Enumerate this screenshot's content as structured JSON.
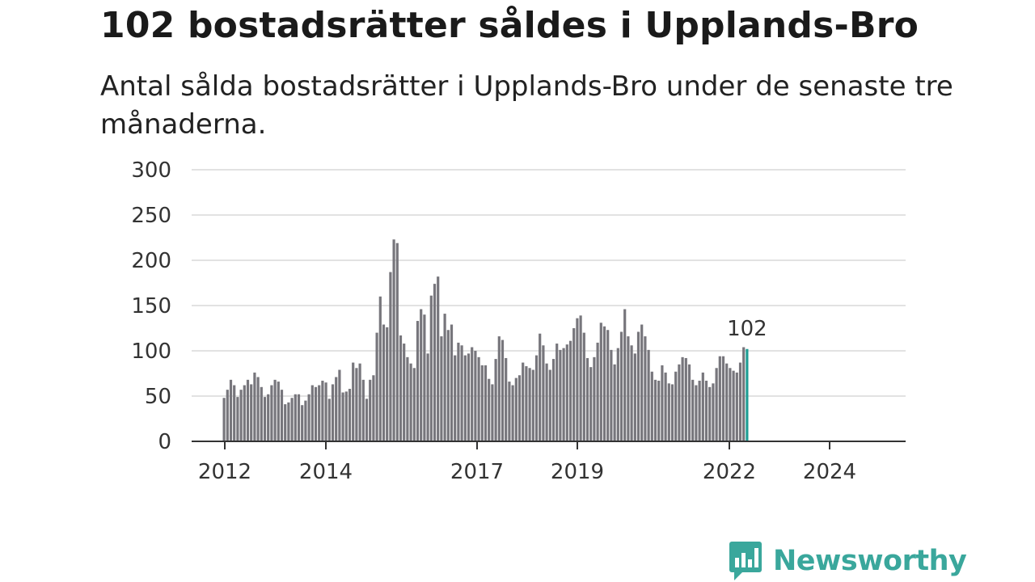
{
  "title": "102 bostadsrätter såldes i Upplands-Bro",
  "subtitle": "Antal sålda bostadsrätter i Upplands-Bro under de senaste tre månaderna.",
  "brand": {
    "name": "Newsworthy",
    "color": "#3aa79c"
  },
  "colors": {
    "bar": "#77767c",
    "highlight": "#1f9e94",
    "grid": "#d9d9d9",
    "axis": "#333333"
  },
  "chart_data": {
    "type": "bar",
    "title": "102 bostadsrätter såldes i Upplands-Bro",
    "subtitle": "Antal sålda bostadsrätter i Upplands-Bro under de senaste tre månaderna.",
    "xlabel": "",
    "ylabel": "",
    "ylim": [
      0,
      300
    ],
    "yticks": [
      0,
      50,
      100,
      150,
      200,
      250,
      300
    ],
    "xticks": [
      "2012",
      "2014",
      "2017",
      "2019",
      "2022",
      "2024"
    ],
    "grid": true,
    "annotation": {
      "text": "102",
      "value": 102
    },
    "highlight_last": true,
    "values": [
      48,
      57,
      68,
      62,
      49,
      57,
      62,
      68,
      63,
      76,
      71,
      60,
      49,
      52,
      62,
      68,
      66,
      57,
      41,
      43,
      48,
      52,
      52,
      40,
      45,
      52,
      62,
      60,
      62,
      67,
      65,
      47,
      63,
      71,
      79,
      54,
      55,
      58,
      87,
      81,
      86,
      68,
      47,
      68,
      73,
      120,
      160,
      129,
      126,
      187,
      223,
      219,
      117,
      108,
      93,
      86,
      81,
      133,
      146,
      140,
      97,
      161,
      174,
      182,
      116,
      141,
      123,
      129,
      95,
      109,
      106,
      95,
      97,
      104,
      100,
      93,
      84,
      84,
      69,
      63,
      91,
      116,
      112,
      92,
      66,
      62,
      70,
      73,
      87,
      83,
      81,
      79,
      95,
      119,
      106,
      86,
      79,
      91,
      108,
      101,
      103,
      107,
      111,
      125,
      136,
      139,
      120,
      92,
      82,
      93,
      109,
      131,
      127,
      123,
      101,
      85,
      103,
      121,
      146,
      116,
      106,
      97,
      121,
      129,
      116,
      101,
      77,
      68,
      67,
      84,
      76,
      64,
      63,
      77,
      85,
      93,
      92,
      85,
      68,
      62,
      67,
      76,
      67,
      60,
      64,
      81,
      94,
      94,
      86,
      81,
      78,
      76,
      87,
      104,
      102
    ]
  }
}
